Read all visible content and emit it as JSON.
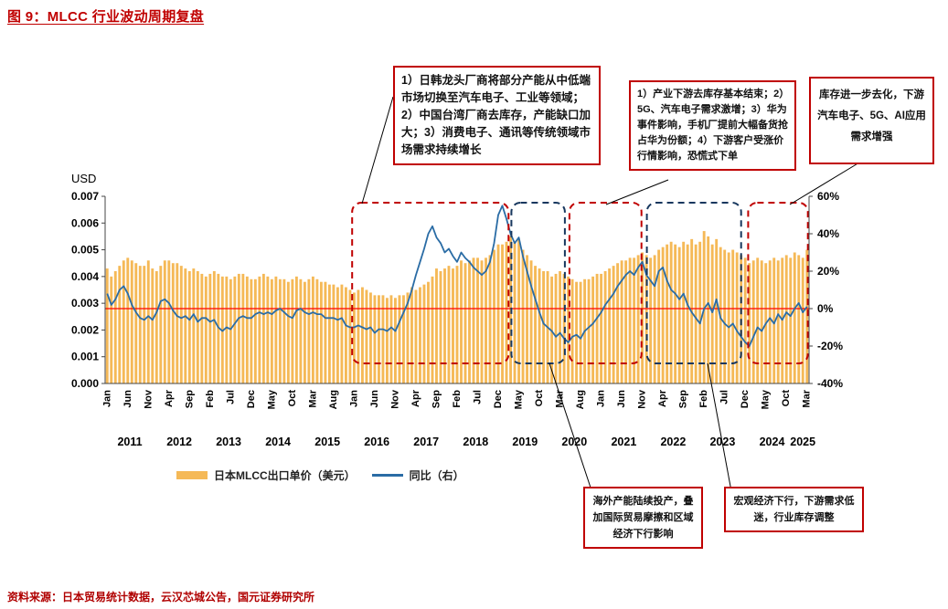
{
  "title": "图 9：MLCC 行业波动周期复盘",
  "source_note": "资料来源：日本贸易统计数据，云汉芯城公告，国元证券研究所",
  "legend": {
    "bar_label": "日本MLCC出口单价（美元）",
    "line_label": "同比（右）"
  },
  "annotations": {
    "box1": "1）日韩龙头厂商将部分产能从中低端市场切换至汽车电子、工业等领域；2）中国台湾厂商去库存，产能缺口加大；3）消费电子、通讯等传统领域市场需求持续增长",
    "box2": "1）产业下游去库存基本结束；2）5G、汽车电子需求激增；3）华为事件影响，手机厂提前大幅备货抢占华为份额；4）下游客户受涨价行情影响，恐慌式下单",
    "box3": "库存进一步去化，下游汽车电子、5G、AI应用需求增强",
    "box4": "海外产能陆续投产，叠加国际贸易摩擦和区域经济下行影响",
    "box5": "宏观经济下行，下游需求低迷，行业库存调整"
  },
  "chart_data": {
    "type": "bar+line",
    "x_start": "2011-01",
    "x_end": "2025-03",
    "x_frequency": "monthly",
    "x_tick_step": 5,
    "x_tick_labels": [
      "Jan",
      "Jun",
      "Nov",
      "Apr",
      "Sep",
      "Feb",
      "Jul",
      "Dec",
      "May",
      "Oct",
      "Mar",
      "Aug",
      "Jan",
      "Jun",
      "Nov",
      "Apr",
      "Sep",
      "Feb",
      "Jul",
      "Dec",
      "May",
      "Oct",
      "Mar",
      "Aug",
      "Jan",
      "Jun",
      "Nov",
      "Apr",
      "Sep",
      "Feb",
      "Jul",
      "Dec",
      "May",
      "Oct",
      "Mar"
    ],
    "year_labels": [
      "2011",
      "2012",
      "2013",
      "2014",
      "2015",
      "2016",
      "2017",
      "2018",
      "2019",
      "2020",
      "2021",
      "2022",
      "2023",
      "2024",
      "2025"
    ],
    "left_axis": {
      "title": "USD",
      "min": 0,
      "max": 0.007,
      "tick_labels": [
        "0.000",
        "0.001",
        "0.002",
        "0.003",
        "0.004",
        "0.005",
        "0.006",
        "0.007"
      ]
    },
    "right_axis": {
      "min": -40,
      "max": 60,
      "tick_labels": [
        "-40%",
        "-20%",
        "0%",
        "20%",
        "40%",
        "60%"
      ]
    },
    "zero_line_color": "#FF0000",
    "series": [
      {
        "name": "日本MLCC出口单价（美元）",
        "type": "bar",
        "axis": "left",
        "color": "#F5B957",
        "values": [
          0.0043,
          0.004,
          0.0042,
          0.0044,
          0.0046,
          0.0047,
          0.0046,
          0.0045,
          0.0044,
          0.0044,
          0.0046,
          0.0043,
          0.0042,
          0.0044,
          0.0046,
          0.0046,
          0.0045,
          0.0045,
          0.0044,
          0.0043,
          0.0042,
          0.0043,
          0.0042,
          0.0041,
          0.004,
          0.0041,
          0.0042,
          0.0041,
          0.004,
          0.004,
          0.0039,
          0.004,
          0.0041,
          0.0041,
          0.004,
          0.0039,
          0.0039,
          0.004,
          0.0041,
          0.004,
          0.0039,
          0.004,
          0.0039,
          0.0039,
          0.0038,
          0.0039,
          0.004,
          0.0039,
          0.0038,
          0.0039,
          0.004,
          0.0039,
          0.0038,
          0.0038,
          0.0037,
          0.0037,
          0.0036,
          0.0037,
          0.0036,
          0.0035,
          0.0034,
          0.0035,
          0.0036,
          0.0035,
          0.0034,
          0.0033,
          0.0033,
          0.0033,
          0.0032,
          0.0033,
          0.0032,
          0.0033,
          0.0033,
          0.0034,
          0.0036,
          0.0035,
          0.0036,
          0.0037,
          0.0038,
          0.004,
          0.0043,
          0.0042,
          0.0043,
          0.0044,
          0.0043,
          0.0044,
          0.0046,
          0.0045,
          0.0046,
          0.0047,
          0.0047,
          0.0046,
          0.0047,
          0.0048,
          0.005,
          0.0052,
          0.0052,
          0.0053,
          0.0055,
          0.0053,
          0.0054,
          0.005,
          0.0048,
          0.0046,
          0.0044,
          0.0043,
          0.0042,
          0.0042,
          0.004,
          0.0041,
          0.0042,
          0.0041,
          0.004,
          0.0039,
          0.0038,
          0.0038,
          0.0039,
          0.0039,
          0.004,
          0.0041,
          0.0041,
          0.0042,
          0.0043,
          0.0044,
          0.0045,
          0.0046,
          0.0046,
          0.0047,
          0.0047,
          0.0048,
          0.0049,
          0.0048,
          0.0047,
          0.0048,
          0.005,
          0.0051,
          0.0052,
          0.0053,
          0.0052,
          0.0051,
          0.0053,
          0.0052,
          0.0054,
          0.0052,
          0.0053,
          0.0057,
          0.0055,
          0.0052,
          0.0054,
          0.0051,
          0.005,
          0.0049,
          0.005,
          0.0049,
          0.0048,
          0.0047,
          0.0045,
          0.0046,
          0.0047,
          0.0046,
          0.0045,
          0.0046,
          0.0047,
          0.0046,
          0.0047,
          0.0048,
          0.0047,
          0.0049,
          0.0048,
          0.0047,
          0.005
        ]
      },
      {
        "name": "同比（右）",
        "type": "line",
        "axis": "right",
        "color": "#2A6CA5",
        "values": [
          8,
          2,
          5,
          10,
          12,
          8,
          2,
          -2,
          -5,
          -6,
          -4,
          -6,
          -2,
          4,
          5,
          3,
          -1,
          -4,
          -5,
          -4,
          -6,
          -3,
          -7,
          -5,
          -5,
          -7,
          -6,
          -10,
          -12,
          -10,
          -11,
          -8,
          -5,
          -4,
          -5,
          -5,
          -3,
          -2,
          -3,
          -2,
          -3,
          -1,
          0,
          -2,
          -4,
          -5,
          -1,
          0,
          -2,
          -3,
          -2,
          -3,
          -3,
          -5,
          -5,
          -5,
          -6,
          -5,
          -9,
          -10,
          -10,
          -9,
          -10,
          -11,
          -10,
          -13,
          -11,
          -11,
          -12,
          -10,
          -12,
          -7,
          -2,
          3,
          10,
          18,
          25,
          32,
          40,
          44,
          38,
          35,
          30,
          32,
          28,
          25,
          30,
          27,
          25,
          22,
          20,
          18,
          20,
          25,
          35,
          50,
          55,
          48,
          40,
          35,
          38,
          28,
          20,
          12,
          5,
          -2,
          -8,
          -10,
          -12,
          -15,
          -13,
          -16,
          -18,
          -15,
          -14,
          -16,
          -12,
          -10,
          -8,
          -5,
          -2,
          2,
          5,
          8,
          12,
          15,
          18,
          20,
          18,
          22,
          25,
          18,
          15,
          12,
          20,
          22,
          15,
          10,
          8,
          5,
          8,
          2,
          -2,
          -5,
          -8,
          0,
          3,
          -2,
          5,
          -5,
          -8,
          -10,
          -8,
          -12,
          -15,
          -18,
          -20,
          -15,
          -10,
          -12,
          -8,
          -5,
          -8,
          -3,
          -6,
          -2,
          -4,
          0,
          3,
          -2,
          1
        ]
      }
    ],
    "highlight_periods": [
      {
        "start_month_index": 60,
        "end_month_index": 98,
        "color": "#C00000"
      },
      {
        "start_month_index": 98.7,
        "end_month_index": 111.7,
        "color": "#17375E"
      },
      {
        "start_month_index": 112.8,
        "end_month_index": 130.3,
        "color": "#C00000"
      },
      {
        "start_month_index": 131.6,
        "end_month_index": 154.5,
        "color": "#17375E"
      },
      {
        "start_month_index": 156.2,
        "end_month_index": 170.7,
        "color": "#C00000"
      }
    ]
  }
}
